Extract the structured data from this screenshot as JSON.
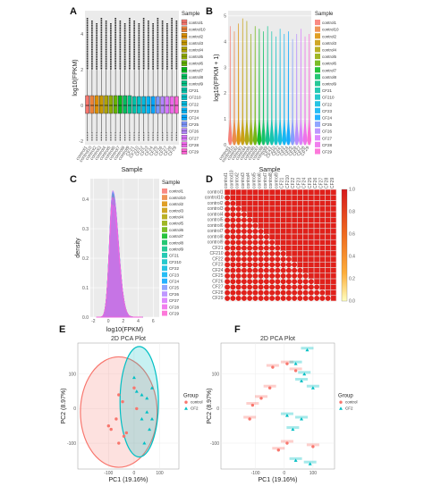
{
  "samples": [
    "control1",
    "control10",
    "control2",
    "control3",
    "control4",
    "control5",
    "control6",
    "control7",
    "control8",
    "control9",
    "CF21",
    "CF210",
    "CF22",
    "CF23",
    "CF24",
    "CF25",
    "CF26",
    "CF27",
    "CF28",
    "CF29"
  ],
  "sample_colors": [
    "#F8766D",
    "#EC8239",
    "#DB8E00",
    "#C79800",
    "#AEA200",
    "#8FAA00",
    "#64B200",
    "#00B81B",
    "#00BD5C",
    "#00C085",
    "#00C1A7",
    "#00BFC4",
    "#00BADE",
    "#00B2F3",
    "#00A6FF",
    "#7C96FF",
    "#B385FF",
    "#D874FD",
    "#EF67EB",
    "#FD61D3"
  ],
  "panels": {
    "A": {
      "letter": "A"
    },
    "B": {
      "letter": "B"
    },
    "C": {
      "letter": "C"
    },
    "D": {
      "letter": "D"
    },
    "E": {
      "letter": "E"
    },
    "F": {
      "letter": "F"
    }
  },
  "chart_data": [
    {
      "id": "A",
      "type": "box",
      "xlabel": "Sample",
      "ylabel": "log10(FPKM)",
      "legend_title": "Sample",
      "legend_position": "right",
      "ylim": [
        -2.2,
        5.3
      ],
      "yticks": [
        "-2",
        "0",
        "2",
        "4"
      ],
      "ytick_values": [
        -2,
        0,
        2,
        4
      ],
      "box_median": 0.0,
      "box_q1": -0.45,
      "box_q3": 0.55,
      "whisker_low": -1.5,
      "whisker_high": 2.0,
      "outlier_max": 4.9,
      "grid": true
    },
    {
      "id": "B",
      "type": "violin",
      "xlabel": "Sample",
      "ylabel": "log10(FPKM + 1)",
      "legend_title": "Sample",
      "legend_position": "right",
      "ylim": [
        0,
        5.2
      ],
      "yticks": [
        "0",
        "1",
        "2",
        "3",
        "4",
        "5"
      ],
      "ytick_values": [
        0,
        1,
        2,
        3,
        4,
        5
      ],
      "max_values": [
        4.6,
        4.4,
        4.7,
        4.9,
        4.8,
        4.3,
        4.6,
        4.5,
        4.4,
        4.6,
        4.4,
        4.2,
        4.5,
        4.3,
        4.4,
        4.1,
        4.3,
        4.5,
        4.2,
        4.3
      ],
      "grid": true
    },
    {
      "id": "C",
      "type": "density",
      "xlabel": "log10(FPKM)",
      "ylabel": "density",
      "legend_title": "Sample",
      "legend_position": "right",
      "xlim": [
        -2.4,
        6.8
      ],
      "ylim": [
        0,
        0.47
      ],
      "xticks": [
        "-2",
        "0",
        "2",
        "4",
        "6"
      ],
      "xtick_values": [
        -2,
        0,
        2,
        4,
        6
      ],
      "yticks": [
        "0.0",
        "0.1",
        "0.2",
        "0.3",
        "0.4"
      ],
      "ytick_values": [
        0,
        0.1,
        0.2,
        0.3,
        0.4
      ],
      "peak_x": 0.6,
      "peak_range": [
        0.36,
        0.43
      ],
      "grid": true
    },
    {
      "id": "D",
      "type": "heatmap",
      "subtype": "correlation-matrix",
      "labels": [
        "control1",
        "control10",
        "control2",
        "control3",
        "control4",
        "control5",
        "control6",
        "control7",
        "control8",
        "control9",
        "CF21",
        "CF210",
        "CF22",
        "CF23",
        "CF24",
        "CF25",
        "CF26",
        "CF27",
        "CF28",
        "CF29"
      ],
      "colorbar_ticks": [
        "1.0",
        "0.8",
        "0.6",
        "0.4",
        "0.2",
        "0.0"
      ],
      "colorbar_values": [
        1.0,
        0.8,
        0.6,
        0.4,
        0.2,
        0.0
      ]
    },
    {
      "id": "E",
      "type": "scatter",
      "title": "2D PCA Plot",
      "xlabel": "PC1 (19.16%)",
      "ylabel": "PC2 (8.97%)",
      "legend_title": "Group",
      "legend_position": "right",
      "xlim": [
        -220,
        175
      ],
      "ylim": [
        -175,
        190
      ],
      "xticks": [
        "-100",
        "0",
        "100"
      ],
      "xtick_values": [
        -100,
        0,
        100
      ],
      "yticks": [
        "-100",
        "0",
        "100"
      ],
      "ytick_values": [
        -100,
        0,
        100
      ],
      "groups": [
        "control",
        "CF2"
      ],
      "group_colors": [
        "#F8766D",
        "#00BFC4"
      ],
      "ellipses": [
        {
          "group": "control",
          "cx": -60,
          "cy": -10,
          "rx": 150,
          "ry": 160
        },
        {
          "group": "CF2",
          "cx": 20,
          "cy": 20,
          "rx": 75,
          "ry": 160
        }
      ],
      "points": [
        {
          "group": "control",
          "x": -60,
          "y": 40
        },
        {
          "group": "control",
          "x": -45,
          "y": 20
        },
        {
          "group": "control",
          "x": -70,
          "y": -30
        },
        {
          "group": "control",
          "x": -90,
          "y": -60
        },
        {
          "group": "control",
          "x": -100,
          "y": -50
        },
        {
          "group": "control",
          "x": -40,
          "y": -80
        },
        {
          "group": "control",
          "x": -60,
          "y": -100
        },
        {
          "group": "control",
          "x": -30,
          "y": -70
        },
        {
          "group": "control",
          "x": 10,
          "y": 0
        },
        {
          "group": "control",
          "x": 0,
          "y": 60
        },
        {
          "group": "CF2",
          "x": 0,
          "y": 90
        },
        {
          "group": "CF2",
          "x": 10,
          "y": 50
        },
        {
          "group": "CF2",
          "x": 30,
          "y": 40
        },
        {
          "group": "CF2",
          "x": 50,
          "y": 30
        },
        {
          "group": "CF2",
          "x": 50,
          "y": -10
        },
        {
          "group": "CF2",
          "x": 30,
          "y": -30
        },
        {
          "group": "CF2",
          "x": 70,
          "y": -30
        },
        {
          "group": "CF2",
          "x": 60,
          "y": -60
        },
        {
          "group": "CF2",
          "x": 40,
          "y": -100
        },
        {
          "group": "CF2",
          "x": 70,
          "y": 60
        }
      ],
      "grid": true
    },
    {
      "id": "F",
      "type": "scatter",
      "title": "2D PCA Plot",
      "xlabel": "PC1 (19.16%)",
      "ylabel": "PC2 (8.97%)",
      "legend_title": "Group",
      "legend_position": "right",
      "xlim": [
        -220,
        175
      ],
      "ylim": [
        -175,
        190
      ],
      "xticks": [
        "-100",
        "0",
        "100"
      ],
      "xtick_values": [
        -100,
        0,
        100
      ],
      "yticks": [
        "-100",
        "0",
        "100"
      ],
      "ytick_values": [
        -100,
        0,
        100
      ],
      "groups": [
        "control",
        "CF2"
      ],
      "group_colors": [
        "#F8766D",
        "#00BFC4"
      ],
      "points": [
        {
          "group": "control",
          "x": -40,
          "y": 120
        },
        {
          "group": "control",
          "x": 10,
          "y": 130
        },
        {
          "group": "control",
          "x": -80,
          "y": 30
        },
        {
          "group": "control",
          "x": -110,
          "y": 10
        },
        {
          "group": "control",
          "x": -120,
          "y": -30
        },
        {
          "group": "control",
          "x": -20,
          "y": -120
        },
        {
          "group": "control",
          "x": -50,
          "y": 60
        },
        {
          "group": "control",
          "x": 40,
          "y": 110
        },
        {
          "group": "control",
          "x": 10,
          "y": -100
        },
        {
          "group": "control",
          "x": 100,
          "y": -110
        },
        {
          "group": "CF2",
          "x": 80,
          "y": 170
        },
        {
          "group": "CF2",
          "x": 40,
          "y": 130
        },
        {
          "group": "CF2",
          "x": 70,
          "y": 100
        },
        {
          "group": "CF2",
          "x": 60,
          "y": 80
        },
        {
          "group": "CF2",
          "x": 100,
          "y": 60
        },
        {
          "group": "CF2",
          "x": 10,
          "y": -20
        },
        {
          "group": "CF2",
          "x": 60,
          "y": -30
        },
        {
          "group": "CF2",
          "x": 30,
          "y": -60
        },
        {
          "group": "CF2",
          "x": 40,
          "y": -150
        },
        {
          "group": "CF2",
          "x": 90,
          "y": -160
        }
      ],
      "grid": true
    }
  ]
}
